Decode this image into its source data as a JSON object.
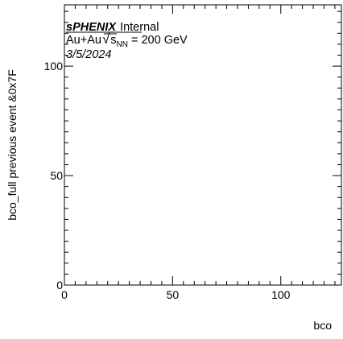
{
  "chart_data": {
    "type": "scatter",
    "title": "",
    "xlabel": "bco",
    "ylabel": "bco_full previous event &0x7F",
    "xlim": [
      0,
      128
    ],
    "ylim": [
      0,
      128
    ],
    "x_ticks": [
      0,
      50,
      100
    ],
    "y_ticks": [
      0,
      50,
      100
    ],
    "grid": false,
    "series": [
      {
        "x": [],
        "y": []
      }
    ]
  },
  "annotations": {
    "experiment": "sPHENIX",
    "status": "Internal",
    "collision_prefix": "Au+Au",
    "sqrt_symbol": "√",
    "s_letter": "s",
    "s_subscript": "NN",
    "energy": "= 200 GeV",
    "date": "3/5/2024"
  }
}
